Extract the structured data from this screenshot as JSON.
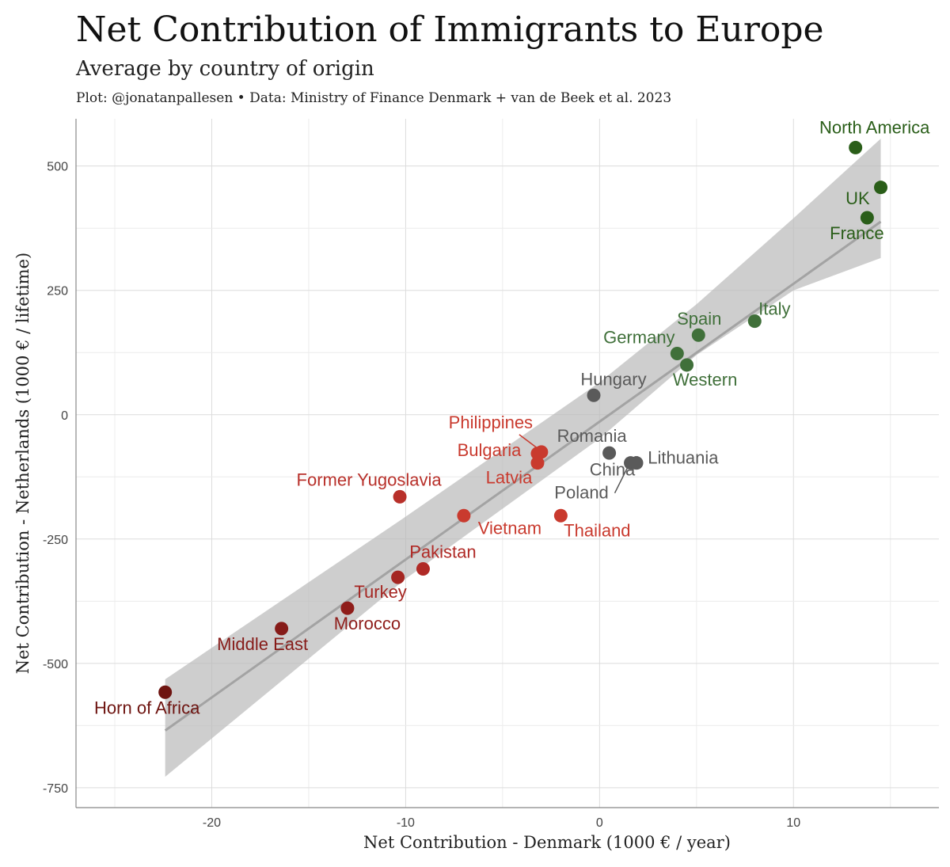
{
  "title": "Net Contribution of Immigrants to Europe",
  "subtitle": "Average by country of origin",
  "caption": "Plot: @jonatanpallesen • Data: Ministry of Finance Denmark + van de Beek et al. 2023",
  "chart_data": {
    "type": "scatter",
    "xlabel": "Net Contribution - Denmark (1000 € / year)",
    "ylabel": "Net Contribution - Netherlands (1000 € / lifetime)",
    "xlim": [
      -27,
      17.5
    ],
    "ylim": [
      -790,
      595
    ],
    "xticks": [
      -20,
      -10,
      0,
      10
    ],
    "yticks": [
      -750,
      -500,
      -250,
      0,
      250,
      500
    ],
    "grid": true,
    "trend": {
      "x0": -22.4,
      "y0": -635,
      "x1": 14.5,
      "y1": 388
    },
    "band": {
      "upper": [
        [
          -22.4,
          -532
        ],
        [
          -10,
          -205
        ],
        [
          0,
          65
        ],
        [
          5,
          222
        ],
        [
          10,
          395
        ],
        [
          14.5,
          555
        ]
      ],
      "lower": [
        [
          -22.4,
          -728
        ],
        [
          -10,
          -330
        ],
        [
          0,
          -48
        ],
        [
          5,
          120
        ],
        [
          10,
          250
        ],
        [
          14.5,
          315
        ]
      ]
    },
    "points": [
      {
        "label": "North America",
        "x": 13.2,
        "y": 537,
        "color": "#2a5e19",
        "label_color": "#2a5e19"
      },
      {
        "label": "",
        "x": 14.5,
        "y": 457,
        "color": "#2a5e19",
        "label_color": "#2a5e19"
      },
      {
        "label": "UK",
        "x": 13.8,
        "y": 396,
        "color": "#2a5e19",
        "label_color": "#2a5e19"
      },
      {
        "label": "France",
        "x": 13.8,
        "y": 396,
        "color": "#2a5e19",
        "label_color": "#2a5e19"
      },
      {
        "label": "Italy",
        "x": 8.0,
        "y": 188,
        "color": "#40703a",
        "label_color": "#40703a"
      },
      {
        "label": "Spain",
        "x": 5.1,
        "y": 160,
        "color": "#40703a",
        "label_color": "#40703a"
      },
      {
        "label": "Germany",
        "x": 4.0,
        "y": 123,
        "color": "#40703a",
        "label_color": "#40703a"
      },
      {
        "label": "Western",
        "x": 4.5,
        "y": 100,
        "color": "#40703a",
        "label_color": "#40703a"
      },
      {
        "label": "Hungary",
        "x": -0.3,
        "y": 39,
        "color": "#5a5a5a",
        "label_color": "#5a5a5a"
      },
      {
        "label": "Romania",
        "x": 0.5,
        "y": -77,
        "color": "#5a5a5a",
        "label_color": "#5a5a5a"
      },
      {
        "label": "Lithuania",
        "x": 1.9,
        "y": -97,
        "color": "#5a5a5a",
        "label_color": "#5a5a5a"
      },
      {
        "label": "China",
        "x": 1.6,
        "y": -97,
        "color": "#5a5a5a",
        "label_color": "#5a5a5a"
      },
      {
        "label": "Poland",
        "x": 1.6,
        "y": -97,
        "color": "#5a5a5a",
        "label_color": "#5a5a5a"
      },
      {
        "label": "Philippines",
        "x": -3.0,
        "y": -75,
        "color": "#c93a2e",
        "label_color": "#c93a2e"
      },
      {
        "label": "Bulgaria",
        "x": -3.2,
        "y": -78,
        "color": "#c93a2e",
        "label_color": "#c93a2e"
      },
      {
        "label": "Latvia",
        "x": -3.2,
        "y": -97,
        "color": "#c93a2e",
        "label_color": "#c93a2e"
      },
      {
        "label": "Thailand",
        "x": -2.0,
        "y": -203,
        "color": "#c93a2e",
        "label_color": "#c93a2e"
      },
      {
        "label": "Vietnam",
        "x": -7.0,
        "y": -203,
        "color": "#c93a2e",
        "label_color": "#c93a2e"
      },
      {
        "label": "Former Yugoslavia",
        "x": -10.3,
        "y": -165,
        "color": "#b8302a",
        "label_color": "#b8302a"
      },
      {
        "label": "Pakistan",
        "x": -9.1,
        "y": -310,
        "color": "#b02a26",
        "label_color": "#b02a26"
      },
      {
        "label": "Turkey",
        "x": -10.4,
        "y": -327,
        "color": "#a52622",
        "label_color": "#a52622"
      },
      {
        "label": "Morocco",
        "x": -13.0,
        "y": -389,
        "color": "#8f1d1a",
        "label_color": "#8f1d1a"
      },
      {
        "label": "Middle East",
        "x": -16.4,
        "y": -430,
        "color": "#861b18",
        "label_color": "#861b18"
      },
      {
        "label": "Horn of Africa",
        "x": -22.4,
        "y": -558,
        "color": "#6e1410",
        "label_color": "#6e1410"
      }
    ]
  }
}
